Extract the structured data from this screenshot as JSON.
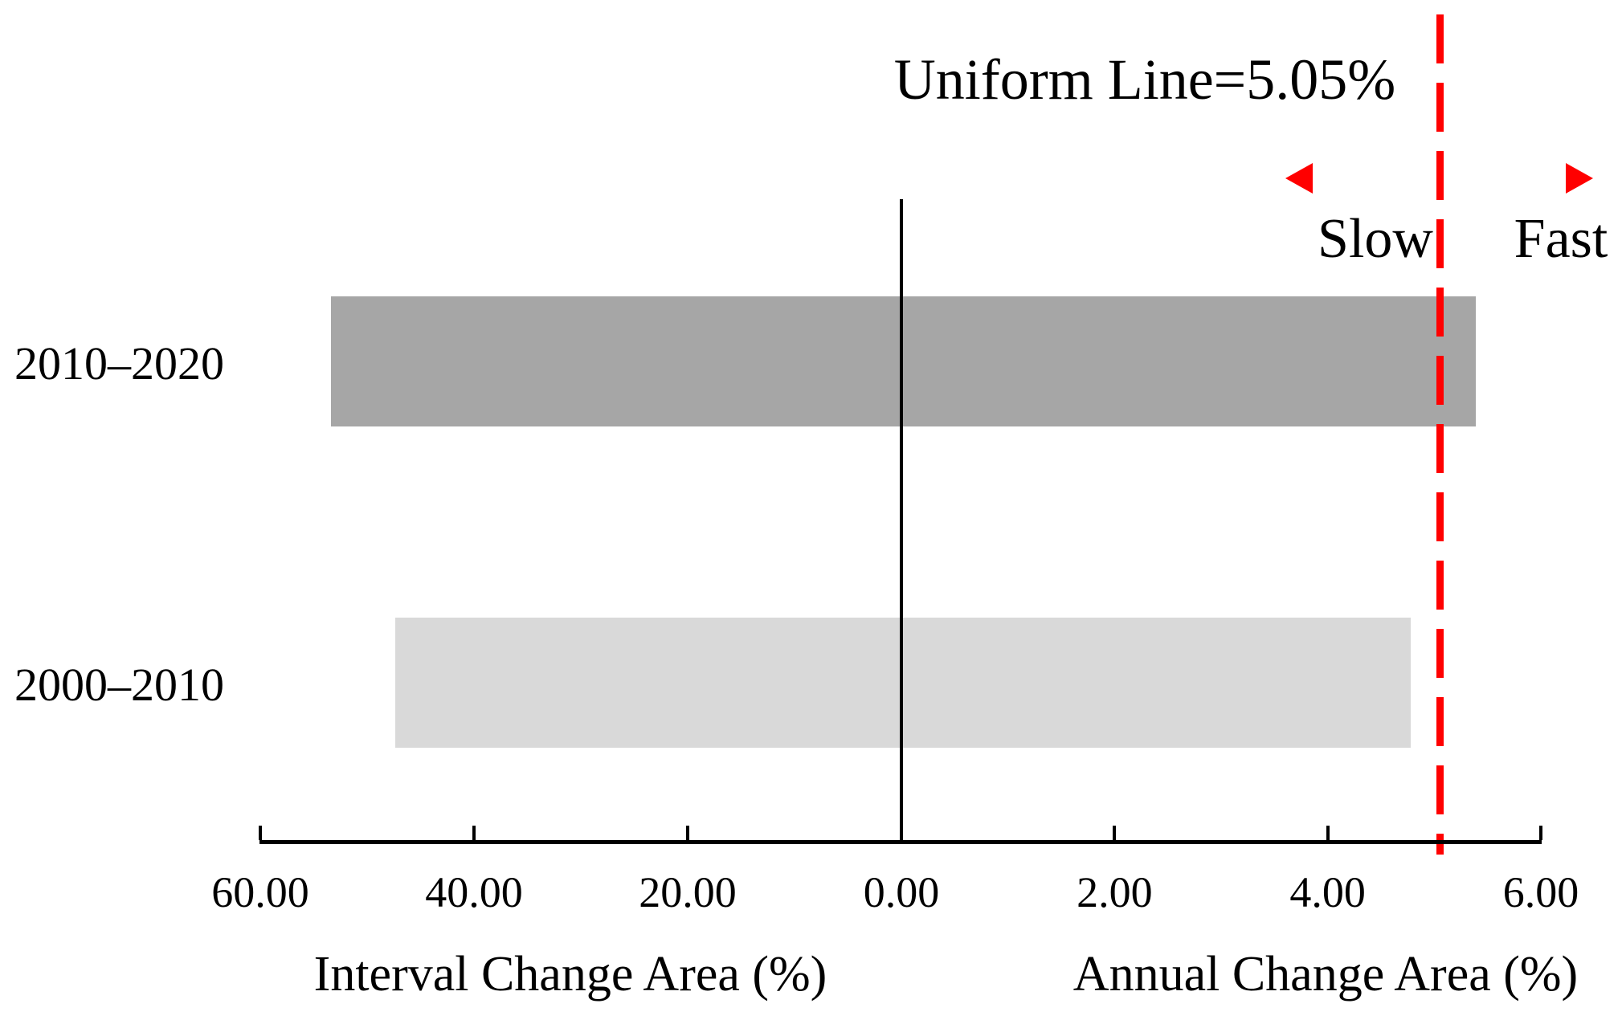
{
  "figure": {
    "slow_label": "Slow",
    "fast_label": "Fast"
  },
  "chart_data": {
    "type": "bar",
    "orientation": "horizontal",
    "title": "Uniform Line=5.05%",
    "categories": [
      "2010–2020",
      "2000–2010"
    ],
    "series": [
      {
        "name": "Interval Change Area (%)",
        "axis": "left",
        "values": [
          53.4,
          47.4
        ]
      },
      {
        "name": "Annual Change Area (%)",
        "axis": "right",
        "values": [
          5.39,
          4.78
        ]
      }
    ],
    "bar_colors": [
      "#a6a6a6",
      "#d9d9d9"
    ],
    "left_axis": {
      "label": "Interval Change Area (%)",
      "ticks": [
        60,
        40,
        20,
        0
      ],
      "tick_labels": [
        "60.00",
        "40.00",
        "20.00",
        "0.00"
      ],
      "range": [
        60,
        0
      ]
    },
    "right_axis": {
      "label": "Annual Change Area (%)",
      "ticks": [
        2,
        4,
        6
      ],
      "tick_labels": [
        "2.00",
        "4.00",
        "6.00"
      ],
      "range": [
        0,
        6
      ]
    },
    "reference_line": {
      "value": 5.05,
      "label": "Uniform Line=5.05%",
      "color": "#ff0000",
      "style": "dashed"
    },
    "annotations": [
      {
        "text": "Slow",
        "side": "left_of_reference_line"
      },
      {
        "text": "Fast",
        "side": "right_of_reference_line"
      }
    ],
    "grid": false,
    "legend": false
  },
  "colors": {
    "bar_dark": "#a6a6a6",
    "bar_light": "#d9d9d9",
    "reference": "#ff0000",
    "axis": "#000000",
    "background": "#ffffff"
  }
}
